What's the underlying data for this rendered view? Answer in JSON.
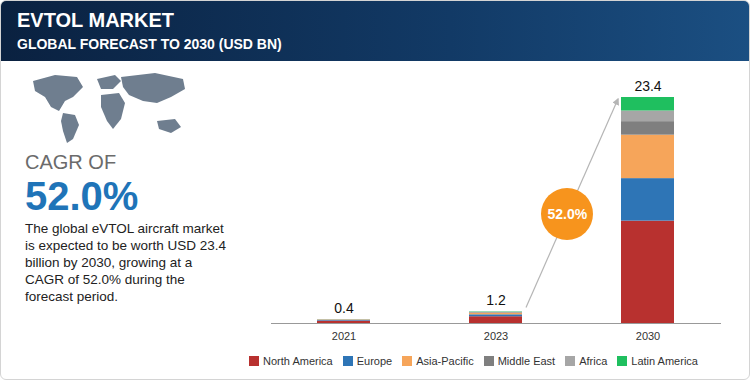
{
  "chart_data": {
    "type": "bar",
    "title": "EVTOL MARKET",
    "subtitle": "GLOBAL FORECAST TO 2030 (USD BN)",
    "categories": [
      "2021",
      "2023",
      "2030"
    ],
    "series": [
      {
        "name": "North America",
        "color": "#b8312f",
        "values": [
          0.25,
          0.7,
          10.6
        ]
      },
      {
        "name": "Europe",
        "color": "#2e75b6",
        "values": [
          0.07,
          0.2,
          4.4
        ]
      },
      {
        "name": "Asia-Pacific",
        "color": "#f6a55a",
        "values": [
          0.04,
          0.16,
          4.5
        ]
      },
      {
        "name": "Middle East",
        "color": "#7f7f7f",
        "values": [
          0.02,
          0.06,
          1.4
        ]
      },
      {
        "name": "Africa",
        "color": "#a6a6a6",
        "values": [
          0.01,
          0.04,
          1.1
        ]
      },
      {
        "name": "Latin America",
        "color": "#1fbf5f",
        "values": [
          0.01,
          0.04,
          1.4
        ]
      }
    ],
    "totals": [
      0.4,
      1.2,
      23.4
    ],
    "stacked": true,
    "ylim": [
      0,
      23.4
    ],
    "yticks": [],
    "tick_labels": "x",
    "grid": false,
    "legend": "bottom",
    "annotations": [
      {
        "text": "52.0%"
      }
    ]
  },
  "side_panel": {
    "label": "CAGR OF",
    "value": "52.0%",
    "text": "The global eVTOL aircraft market is expected to be worth USD 23.4 billion by 2030, growing at a CAGR of 52.0% during the forecast period."
  }
}
